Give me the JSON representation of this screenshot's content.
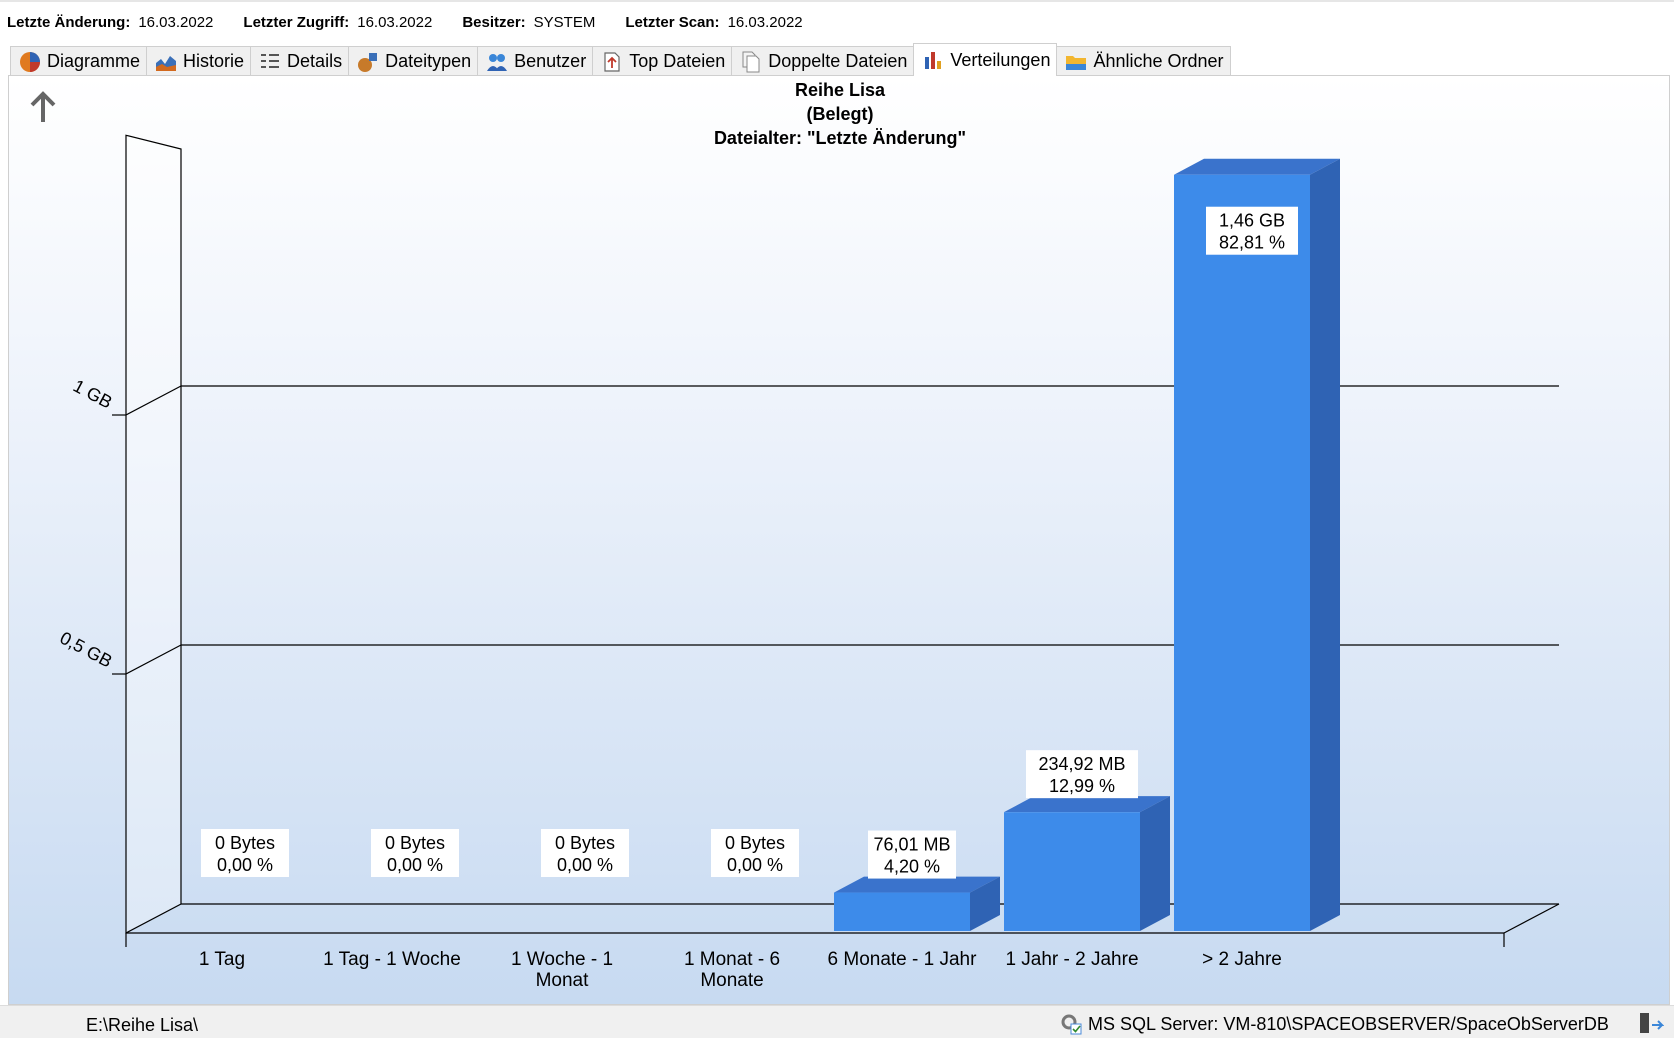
{
  "info": {
    "last_change_label": "Letzte Änderung:",
    "last_change_value": "16.03.2022",
    "last_access_label": "Letzter Zugriff:",
    "last_access_value": "16.03.2022",
    "owner_label": "Besitzer:",
    "owner_value": "SYSTEM",
    "last_scan_label": "Letzter Scan:",
    "last_scan_value": "16.03.2022"
  },
  "tabs": [
    {
      "label": "Diagramme",
      "icon": "pie-chart-icon"
    },
    {
      "label": "Historie",
      "icon": "area-chart-icon"
    },
    {
      "label": "Details",
      "icon": "details-list-icon"
    },
    {
      "label": "Dateitypen",
      "icon": "file-types-icon"
    },
    {
      "label": "Benutzer",
      "icon": "users-icon"
    },
    {
      "label": "Top Dateien",
      "icon": "top-files-icon"
    },
    {
      "label": "Doppelte Dateien",
      "icon": "duplicate-files-icon"
    },
    {
      "label": "Verteilungen",
      "icon": "bar-chart-icon"
    },
    {
      "label": "Ähnliche Ordner",
      "icon": "folder-icon"
    }
  ],
  "active_tab": "Verteilungen",
  "colors": {
    "bar_front": "#3d8bea",
    "bar_top": "#3a73cc",
    "bar_side": "#2f63b4"
  },
  "chart_data": {
    "type": "bar",
    "title": [
      "Reihe Lisa",
      "(Belegt)",
      "Dateialter: \"Letzte Änderung\""
    ],
    "categories": [
      "1 Tag",
      "1 Tag - 1 Woche",
      "1 Woche - 1 Monat",
      "1 Monat - 6 Monate",
      "6 Monate - 1 Jahr",
      "1 Jahr - 2 Jahre",
      "> 2 Jahre"
    ],
    "values_gb": [
      0,
      0,
      0,
      0,
      0.0742,
      0.2294,
      1.46
    ],
    "value_labels": [
      "0 Bytes",
      "0 Bytes",
      "0 Bytes",
      "0 Bytes",
      "76,01 MB",
      "234,92 MB",
      "1,46 GB"
    ],
    "percent_labels": [
      "0,00 %",
      "0,00 %",
      "0,00 %",
      "0,00 %",
      "4,20 %",
      "12,99 %",
      "82,81 %"
    ],
    "y_ticks": [
      {
        "value": 0.5,
        "label": "0,5 GB"
      },
      {
        "value": 1,
        "label": "1 GB"
      }
    ],
    "ylim": [
      0,
      1.5
    ],
    "grid": true,
    "legend": "none"
  },
  "status": {
    "path": "E:\\Reihe Lisa\\",
    "server": "MS SQL Server: VM-810\\SPACEOBSERVER/SpaceObServerDB"
  }
}
